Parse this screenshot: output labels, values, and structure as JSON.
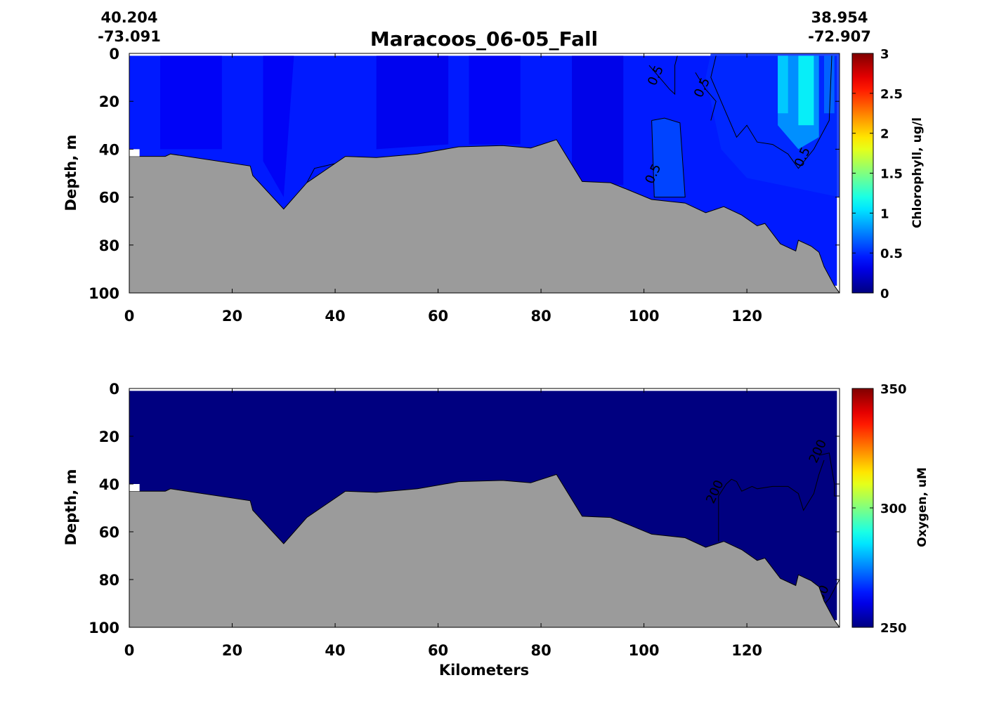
{
  "figure": {
    "title": "Maracoos_06-05_Fall",
    "start_lat": "40.204",
    "start_lon": "-73.091",
    "end_lat": "38.954",
    "end_lon": "-72.907",
    "x_axis_label": "Kilometers",
    "y_axis_label": "Depth, m"
  },
  "chart_data": [
    {
      "type": "heatmap",
      "panel": "top",
      "variable": "Chlorophyll",
      "colorbar_label": "Chlorophyll, ug/l",
      "colorbar_ticks": [
        "0",
        "0.5",
        "1",
        "1.5",
        "2",
        "2.5",
        "3"
      ],
      "clim": [
        0,
        3
      ],
      "colormap": "jet",
      "xlim": [
        0,
        138
      ],
      "ylim": [
        100,
        0
      ],
      "x_ticks": [
        "0",
        "20",
        "40",
        "60",
        "80",
        "100",
        "120"
      ],
      "y_ticks": [
        "0",
        "20",
        "40",
        "60",
        "80",
        "100"
      ],
      "background_value": 0.45,
      "patches": [
        {
          "value": 0.35,
          "poly": [
            [
              6,
              1
            ],
            [
              18,
              1
            ],
            [
              18,
              40
            ],
            [
              6,
              40
            ]
          ]
        },
        {
          "value": 0.35,
          "poly": [
            [
              26,
              1
            ],
            [
              32,
              1
            ],
            [
              30,
              60
            ],
            [
              26,
              45
            ]
          ]
        },
        {
          "value": 0.32,
          "poly": [
            [
              48,
              1
            ],
            [
              62,
              1
            ],
            [
              62,
              38
            ],
            [
              48,
              40
            ]
          ]
        },
        {
          "value": 0.35,
          "poly": [
            [
              66,
              1
            ],
            [
              76,
              1
            ],
            [
              76,
              38
            ],
            [
              66,
              38
            ]
          ]
        },
        {
          "value": 0.3,
          "poly": [
            [
              86,
              1
            ],
            [
              96,
              1
            ],
            [
              96,
              55
            ],
            [
              86,
              53
            ]
          ]
        },
        {
          "value": 0.6,
          "poly": [
            [
              101.5,
              28
            ],
            [
              104,
              27
            ],
            [
              107,
              29
            ],
            [
              108,
              60
            ],
            [
              102,
              60
            ]
          ]
        },
        {
          "value": 0.5,
          "poly": [
            [
              112,
              10
            ],
            [
              113,
              0
            ],
            [
              138,
              0
            ],
            [
              138,
              60
            ],
            [
              120,
              52
            ],
            [
              115,
              40
            ]
          ]
        },
        {
          "value": 0.85,
          "poly": [
            [
              126,
              1
            ],
            [
              134,
              1
            ],
            [
              134,
              35
            ],
            [
              130,
              40
            ],
            [
              126,
              30
            ]
          ]
        },
        {
          "value": 1.15,
          "poly": [
            [
              130,
              1
            ],
            [
              133,
              1
            ],
            [
              133,
              30
            ],
            [
              130,
              30
            ]
          ]
        },
        {
          "value": 1.0,
          "poly": [
            [
              126,
              1
            ],
            [
              128,
              1
            ],
            [
              128,
              25
            ],
            [
              126,
              25
            ]
          ]
        },
        {
          "value": 0.7,
          "poly": [
            [
              135,
              1
            ],
            [
              137,
              1
            ],
            [
              137,
              25
            ],
            [
              135,
              25
            ]
          ]
        }
      ],
      "contours": [
        {
          "label": "0.5",
          "label_at": [
            103,
            10
          ],
          "points": [
            [
              101,
              5
            ],
            [
              103,
              10
            ],
            [
              105,
              15
            ],
            [
              106,
              17
            ],
            [
              106,
              5
            ],
            [
              106.5,
              1
            ]
          ]
        },
        {
          "label": "0.5",
          "label_at": [
            112,
            15
          ],
          "points": [
            [
              110,
              8
            ],
            [
              112,
              15
            ],
            [
              114,
              20
            ],
            [
              113,
              28
            ]
          ]
        },
        {
          "label": "0.5",
          "label_at": [
            102.5,
            51
          ],
          "points": [
            [
              101.5,
              28
            ],
            [
              104,
              27
            ],
            [
              107,
              29
            ],
            [
              108,
              60
            ],
            [
              102,
              60
            ],
            [
              101.5,
              28
            ]
          ]
        },
        {
          "label": "0.5",
          "label_at": [
            131.5,
            44
          ],
          "points": [
            [
              114,
              1
            ],
            [
              113,
              10
            ],
            [
              116,
              25
            ],
            [
              118,
              35
            ],
            [
              120,
              30
            ],
            [
              122,
              37
            ],
            [
              125,
              38
            ],
            [
              128,
              42
            ],
            [
              130,
              48
            ],
            [
              133,
              40
            ],
            [
              136,
              28
            ],
            [
              136.5,
              1
            ]
          ]
        },
        {
          "label": "",
          "label_at": null,
          "points": [
            [
              34,
              56
            ],
            [
              36,
              48
            ],
            [
              40,
              46
            ]
          ]
        }
      ]
    },
    {
      "type": "heatmap",
      "panel": "bottom",
      "variable": "Oxygen",
      "colorbar_label": "Oxygen, uM",
      "colorbar_ticks": [
        "250",
        "300",
        "350"
      ],
      "clim": [
        250,
        350
      ],
      "colormap": "jet",
      "xlim": [
        0,
        138
      ],
      "ylim": [
        100,
        0
      ],
      "x_ticks": [
        "0",
        "20",
        "40",
        "60",
        "80",
        "100",
        "120"
      ],
      "y_ticks": [
        "0",
        "20",
        "40",
        "60",
        "80",
        "100"
      ],
      "background_value": 200,
      "patches": [],
      "contours": [
        {
          "label": "200",
          "label_at": [
            114.5,
            44
          ],
          "points": [
            [
              114.5,
              64
            ],
            [
              114.5,
              45
            ],
            [
              116,
              40
            ],
            [
              117,
              38
            ],
            [
              118,
              39
            ],
            [
              119,
              43
            ],
            [
              121,
              41
            ],
            [
              122,
              42
            ],
            [
              125,
              41
            ],
            [
              128,
              41
            ],
            [
              130,
              44
            ],
            [
              131,
              51
            ],
            [
              133,
              44
            ],
            [
              134,
              36
            ],
            [
              135,
              30
            ]
          ]
        },
        {
          "label": "200",
          "label_at": [
            134.5,
            27
          ],
          "points": [
            [
              134,
              28
            ],
            [
              136,
              27
            ],
            [
              137,
              40
            ],
            [
              137,
              45
            ],
            [
              138,
              45
            ]
          ]
        },
        {
          "label": "200",
          "label_at": [
            135,
            88
          ],
          "points": [
            [
              134,
              93
            ],
            [
              136,
              88
            ],
            [
              138,
              80
            ],
            [
              138,
              70
            ]
          ]
        }
      ]
    }
  ],
  "bathymetry": {
    "x": [
      0,
      2,
      7,
      8,
      23.5,
      24,
      30,
      34.5,
      42,
      48,
      56,
      64,
      72.5,
      78,
      83,
      88,
      93.5,
      97,
      101.5,
      108,
      112,
      115.5,
      119,
      122,
      123.5,
      126.5,
      129.5,
      130,
      132.5,
      134,
      135,
      137,
      138
    ],
    "depth": [
      43,
      43,
      43,
      42,
      47,
      51,
      65,
      54,
      43,
      43.5,
      42,
      39,
      38.5,
      39.5,
      36,
      53.5,
      54,
      57,
      61,
      62.5,
      66.5,
      64,
      67.5,
      72,
      71,
      79.5,
      82.5,
      78,
      80.5,
      83,
      89,
      97,
      100
    ]
  },
  "colors": {
    "bathymetry_fill": "#9b9b9b",
    "blank": "#ffffff"
  }
}
